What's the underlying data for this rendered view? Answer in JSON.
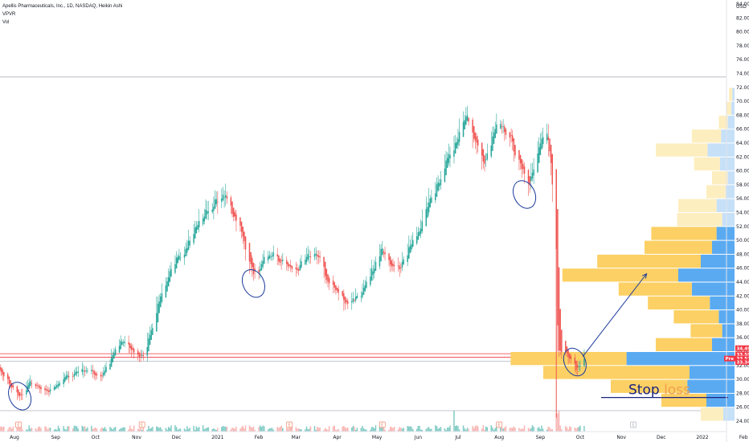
{
  "legend": {
    "symbol_line": "Apellis Pharmaceuticals, Inc., 1D, NASDAQ, Heikin Ashi",
    "indicator_1": "VPVR",
    "indicator_2": "Vol"
  },
  "chart_data": {
    "type": "candlestick",
    "candle_type": "Heikin Ashi",
    "interval": "1D",
    "symbol": "Apellis Pharmaceuticals, Inc.",
    "exchange": "NASDAQ",
    "currency_label": "USD",
    "ylim": [
      23.5,
      86.5
    ],
    "y_ticks": [
      24,
      26,
      28,
      30,
      32,
      34,
      36,
      38,
      40,
      42,
      44,
      46,
      48,
      50,
      52,
      54,
      56,
      58,
      60,
      62,
      64,
      66,
      68,
      70,
      72,
      74,
      76,
      78,
      80,
      82,
      84,
      86
    ],
    "x_ticks": [
      {
        "label": "Aug",
        "date": "2020-08-01"
      },
      {
        "label": "Sep",
        "date": "2020-09-01"
      },
      {
        "label": "Oct",
        "date": "2020-10-01"
      },
      {
        "label": "Nov",
        "date": "2020-11-01"
      },
      {
        "label": "Dec",
        "date": "2020-12-01"
      },
      {
        "label": "2021",
        "date": "2021-01-01"
      },
      {
        "label": "Feb",
        "date": "2021-02-01"
      },
      {
        "label": "Mar",
        "date": "2021-03-01"
      },
      {
        "label": "Apr",
        "date": "2021-04-01"
      },
      {
        "label": "May",
        "date": "2021-05-01"
      },
      {
        "label": "Jun",
        "date": "2021-06-01"
      },
      {
        "label": "Jul",
        "date": "2021-07-01"
      },
      {
        "label": "Aug",
        "date": "2021-08-01"
      },
      {
        "label": "Sep",
        "date": "2021-09-01"
      },
      {
        "label": "Oct",
        "date": "2021-10-01"
      },
      {
        "label": "Nov",
        "date": "2021-11-01"
      },
      {
        "label": "Dec",
        "date": "2021-12-01"
      },
      {
        "label": "2022",
        "date": "2022-01-01"
      },
      {
        "label": "Feb",
        "date": "2022-02-01"
      }
    ],
    "price_path": [
      {
        "date": "2020-07-15",
        "close": 33.0
      },
      {
        "date": "2020-07-28",
        "close": 29.0
      },
      {
        "date": "2020-08-05",
        "close": 27.5
      },
      {
        "date": "2020-08-12",
        "close": 29.5
      },
      {
        "date": "2020-08-25",
        "close": 28.0
      },
      {
        "date": "2020-09-05",
        "close": 30.0
      },
      {
        "date": "2020-09-20",
        "close": 31.5
      },
      {
        "date": "2020-10-05",
        "close": 30.5
      },
      {
        "date": "2020-10-20",
        "close": 35.5
      },
      {
        "date": "2020-11-05",
        "close": 33.0
      },
      {
        "date": "2020-11-20",
        "close": 43.0
      },
      {
        "date": "2020-12-05",
        "close": 48.5
      },
      {
        "date": "2020-12-20",
        "close": 53.5
      },
      {
        "date": "2021-01-05",
        "close": 56.5
      },
      {
        "date": "2021-01-15",
        "close": 53.0
      },
      {
        "date": "2021-01-28",
        "close": 45.0
      },
      {
        "date": "2021-02-10",
        "close": 48.0
      },
      {
        "date": "2021-02-28",
        "close": 45.5
      },
      {
        "date": "2021-03-15",
        "close": 48.5
      },
      {
        "date": "2021-03-25",
        "close": 44.0
      },
      {
        "date": "2021-04-08",
        "close": 41.0
      },
      {
        "date": "2021-04-20",
        "close": 42.5
      },
      {
        "date": "2021-05-05",
        "close": 49.0
      },
      {
        "date": "2021-05-15",
        "close": 45.5
      },
      {
        "date": "2021-05-30",
        "close": 50.5
      },
      {
        "date": "2021-06-15",
        "close": 58.5
      },
      {
        "date": "2021-06-28",
        "close": 64.0
      },
      {
        "date": "2021-07-05",
        "close": 68.5
      },
      {
        "date": "2021-07-12",
        "close": 64.5
      },
      {
        "date": "2021-07-20",
        "close": 61.0
      },
      {
        "date": "2021-07-30",
        "close": 66.5
      },
      {
        "date": "2021-08-10",
        "close": 64.0
      },
      {
        "date": "2021-08-22",
        "close": 57.5
      },
      {
        "date": "2021-09-01",
        "close": 64.0
      },
      {
        "date": "2021-09-05",
        "close": 66.5
      },
      {
        "date": "2021-09-09",
        "close": 60.0
      },
      {
        "date": "2021-09-12",
        "close": 48.0
      },
      {
        "date": "2021-09-14",
        "close": 34.5
      },
      {
        "date": "2021-09-20",
        "close": 33.5
      },
      {
        "date": "2021-09-28",
        "close": 31.5
      },
      {
        "date": "2021-10-04",
        "close": 33.5
      }
    ],
    "volume_profile": [
      {
        "price": 71,
        "up": 3,
        "down": 2
      },
      {
        "price": 69,
        "up": 4,
        "down": 3
      },
      {
        "price": 67,
        "up": 8,
        "down": 6
      },
      {
        "price": 65,
        "up": 26,
        "down": 12
      },
      {
        "price": 63,
        "up": 46,
        "down": 24
      },
      {
        "price": 61,
        "up": 23,
        "down": 13
      },
      {
        "price": 59,
        "up": 14,
        "down": 6
      },
      {
        "price": 57,
        "up": 17,
        "down": 8
      },
      {
        "price": 55,
        "up": 34,
        "down": 16
      },
      {
        "price": 53,
        "up": 40,
        "down": 11
      },
      {
        "price": 51,
        "up": 58,
        "down": 16
      },
      {
        "price": 49,
        "up": 60,
        "down": 20
      },
      {
        "price": 47,
        "up": 92,
        "down": 30
      },
      {
        "price": 45,
        "up": 103,
        "down": 50
      },
      {
        "price": 43,
        "up": 65,
        "down": 38
      },
      {
        "price": 41,
        "up": 55,
        "down": 22
      },
      {
        "price": 39,
        "up": 40,
        "down": 14
      },
      {
        "price": 37,
        "up": 28,
        "down": 11
      },
      {
        "price": 35,
        "up": 50,
        "down": 20
      },
      {
        "price": 33,
        "up": 103,
        "down": 96
      },
      {
        "price": 31,
        "up": 130,
        "down": 40
      },
      {
        "price": 29,
        "up": 68,
        "down": 42
      },
      {
        "price": 27,
        "up": 40,
        "down": 25
      },
      {
        "price": 25,
        "up": 20,
        "down": 10
      }
    ],
    "horizontal_lines": [
      {
        "price": 73.5,
        "color": "#b2b5be"
      },
      {
        "price": 33.7,
        "color": "#f23645"
      },
      {
        "price": 33.2,
        "color": "#f23645"
      },
      {
        "price": 32.6,
        "color": "#b2b5be"
      },
      {
        "price": 25.5,
        "color": "#b2b5be"
      }
    ],
    "price_labels": [
      {
        "text": "34.49",
        "price": 34.49,
        "color": "#f23645"
      },
      {
        "text": "33.59",
        "price": 33.59,
        "color": "#f23645"
      },
      {
        "text": "33.57",
        "price": 33.0,
        "color": "#f23645",
        "tag": "Pre"
      },
      {
        "text": "33.34",
        "price": 32.5,
        "color": "#f23645"
      }
    ],
    "annotations": {
      "stop_loss": {
        "word1": "Stop",
        "word2": "loss",
        "price": 27.4,
        "color1": "#1a237e",
        "color2": "#f0a050"
      },
      "arrow": {
        "from": {
          "date": "2021-10-03",
          "price": 33.3
        },
        "to": {
          "date": "2021-11-20",
          "price": 45.2
        }
      },
      "circles": [
        {
          "date": "2020-08-05",
          "price": 27.6
        },
        {
          "date": "2021-01-28",
          "price": 43.8
        },
        {
          "date": "2021-08-20",
          "price": 56.6
        },
        {
          "date": "2021-09-27",
          "price": 32.5
        }
      ],
      "earnings_markers": [
        {
          "date": "2020-08-04",
          "label": "E"
        },
        {
          "date": "2020-11-05",
          "label": "E"
        },
        {
          "date": "2021-02-24",
          "label": "E"
        },
        {
          "date": "2021-05-05",
          "label": "E"
        },
        {
          "date": "2021-08-01",
          "label": "E"
        },
        {
          "date": "2021-11-10",
          "label": "E"
        }
      ]
    },
    "colors": {
      "up": "#26a69a",
      "down": "#ef5350",
      "vp_up": "#fcd064",
      "vp_down": "#5aaaf2",
      "vp_up_light": "#fdeec0",
      "vp_down_light": "#c6e0f8",
      "volume_up": "#80cbc4",
      "volume_down": "#f8b6b4",
      "annotation_blue": "#1a3a9c"
    }
  }
}
